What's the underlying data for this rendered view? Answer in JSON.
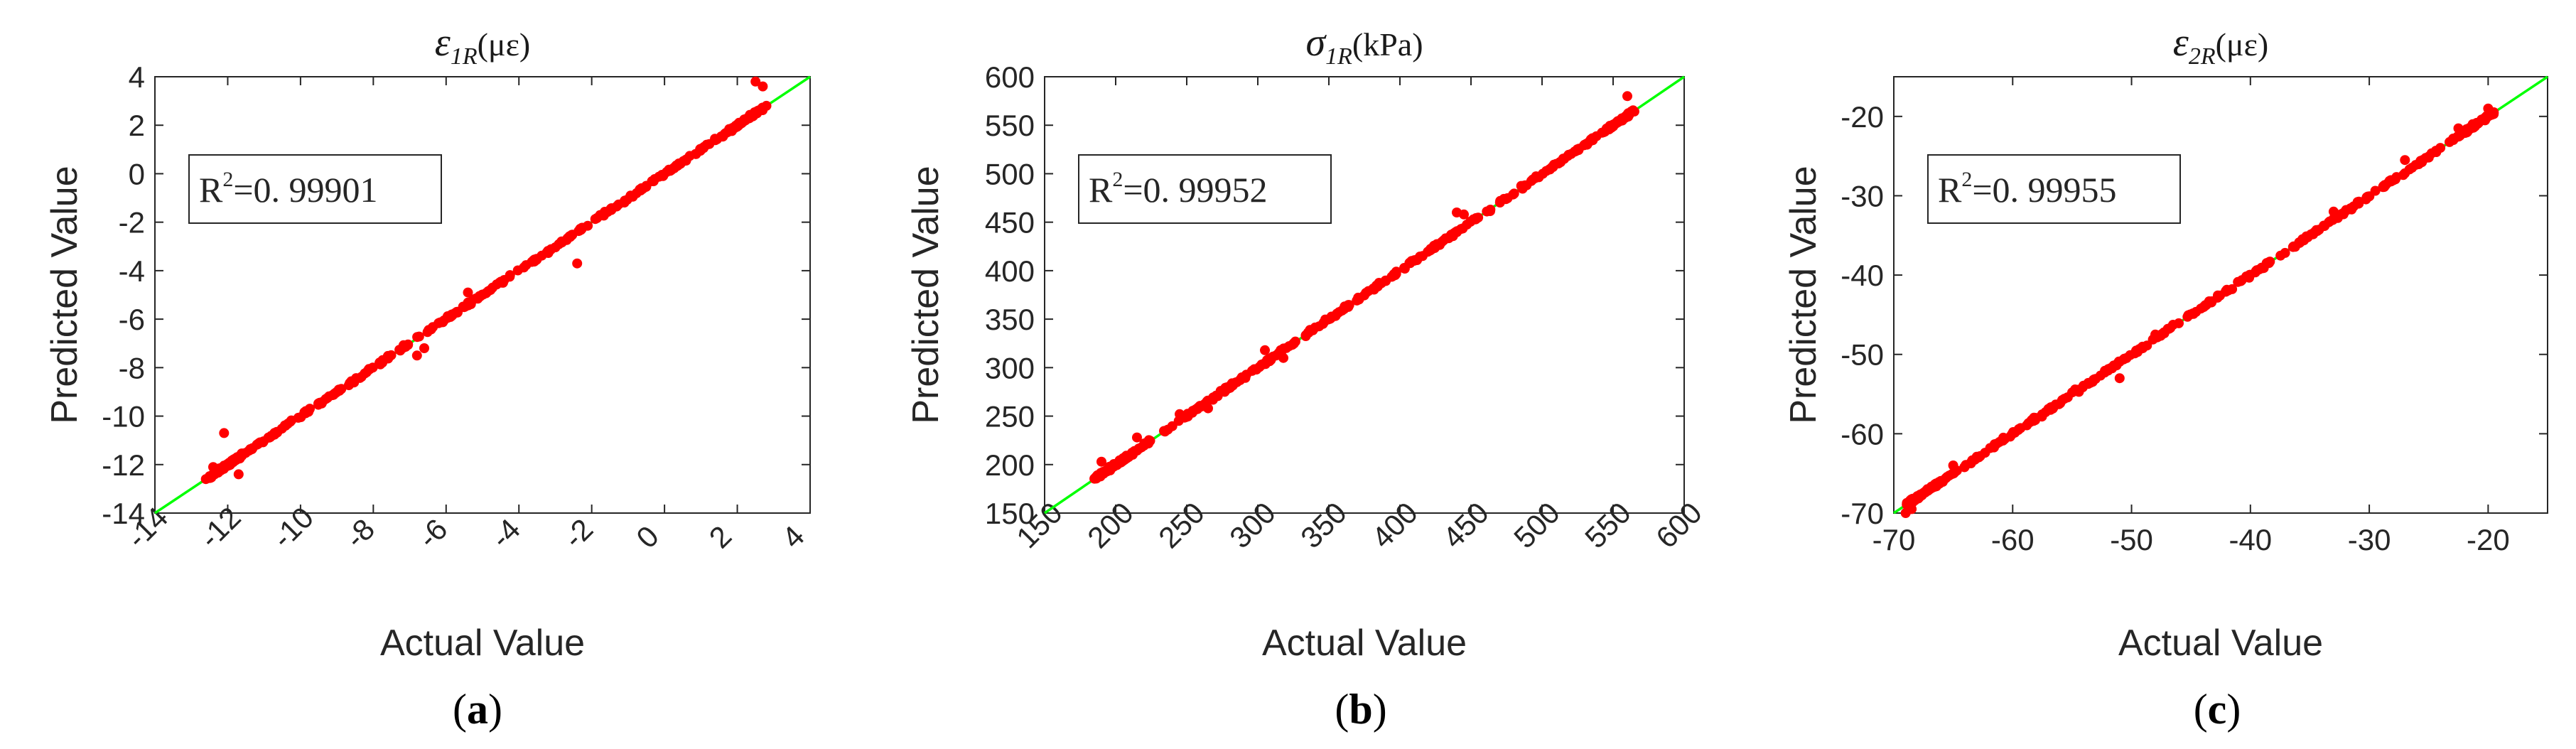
{
  "chart_data": [
    {
      "type": "scatter",
      "panel_label": "a",
      "title": {
        "symbol": "ε",
        "subscript": "1R",
        "unit": "(με)"
      },
      "xlabel": "Actual Value",
      "ylabel": "Predicted Value",
      "xlim": [
        -14,
        4
      ],
      "ylim": [
        -14,
        4
      ],
      "xticks": [
        -14,
        -12,
        -10,
        -8,
        -6,
        -4,
        -2,
        0,
        2,
        4
      ],
      "yticks": [
        -14,
        -12,
        -10,
        -8,
        -6,
        -4,
        -2,
        0,
        2,
        4
      ],
      "xtick_rotation": -45,
      "r2": {
        "label": "R",
        "sup": "2",
        "value": "=0. 99901"
      },
      "fit_line": {
        "from": [
          -14,
          -14
        ],
        "to": [
          4,
          4
        ],
        "color": "#00ff00"
      },
      "point_color": "#ff0000",
      "point_range": [
        -12.5,
        2.7
      ],
      "outliers": [
        [
          -12.1,
          -10.7
        ],
        [
          -2.4,
          -3.7
        ],
        [
          -6.8,
          -7.5
        ],
        [
          -6.6,
          -7.2
        ],
        [
          2.5,
          3.8
        ],
        [
          2.7,
          3.6
        ],
        [
          2.8,
          2.8
        ],
        [
          -11.7,
          -12.4
        ],
        [
          -12.6,
          -12.6
        ],
        [
          -12.4,
          -12.1
        ],
        [
          -5.4,
          -4.9
        ]
      ]
    },
    {
      "type": "scatter",
      "panel_label": "b",
      "title": {
        "symbol": "σ",
        "subscript": "1R",
        "unit": "(kPa)"
      },
      "xlabel": "Actual Value",
      "ylabel": "Predicted Value",
      "xlim": [
        150,
        600
      ],
      "ylim": [
        150,
        600
      ],
      "xticks": [
        150,
        200,
        250,
        300,
        350,
        400,
        450,
        500,
        550,
        600
      ],
      "yticks": [
        150,
        200,
        250,
        300,
        350,
        400,
        450,
        500,
        550,
        600
      ],
      "xtick_rotation": -45,
      "r2": {
        "label": "R",
        "sup": "2",
        "value": "=0. 99952"
      },
      "fit_line": {
        "from": [
          150,
          150
        ],
        "to": [
          600,
          600
        ],
        "color": "#00ff00"
      },
      "point_color": "#ff0000",
      "point_range": [
        185,
        565
      ],
      "outliers": [
        [
          318,
          310
        ],
        [
          265,
          258
        ],
        [
          245,
          252
        ],
        [
          215,
          228
        ],
        [
          440,
          460
        ],
        [
          560,
          580
        ],
        [
          445,
          458
        ],
        [
          305,
          318
        ],
        [
          190,
          203
        ]
      ]
    },
    {
      "type": "scatter",
      "panel_label": "c",
      "title": {
        "symbol": "ε",
        "subscript": "2R",
        "unit": "(με)"
      },
      "xlabel": "Actual Value",
      "ylabel": "Predicted Value",
      "xlim": [
        -70,
        -15
      ],
      "ylim": [
        -70,
        -15
      ],
      "xticks": [
        -70,
        -60,
        -50,
        -40,
        -30,
        -20
      ],
      "yticks": [
        -70,
        -60,
        -50,
        -40,
        -30,
        -20
      ],
      "xtick_rotation": 0,
      "r2": {
        "label": "R",
        "sup": "2",
        "value": "=0. 99955"
      },
      "fit_line": {
        "from": [
          -70,
          -70
        ],
        "to": [
          -15,
          -15
        ],
        "color": "#00ff00"
      },
      "point_color": "#ff0000",
      "point_range": [
        -69,
        -19.5
      ],
      "outliers": [
        [
          -51,
          -53
        ],
        [
          -69,
          -70
        ],
        [
          -68.5,
          -69.5
        ],
        [
          -33,
          -32
        ],
        [
          -27,
          -25.5
        ],
        [
          -22.5,
          -21.5
        ],
        [
          -20,
          -19
        ],
        [
          -65,
          -64
        ],
        [
          -48,
          -47.5
        ]
      ]
    }
  ]
}
